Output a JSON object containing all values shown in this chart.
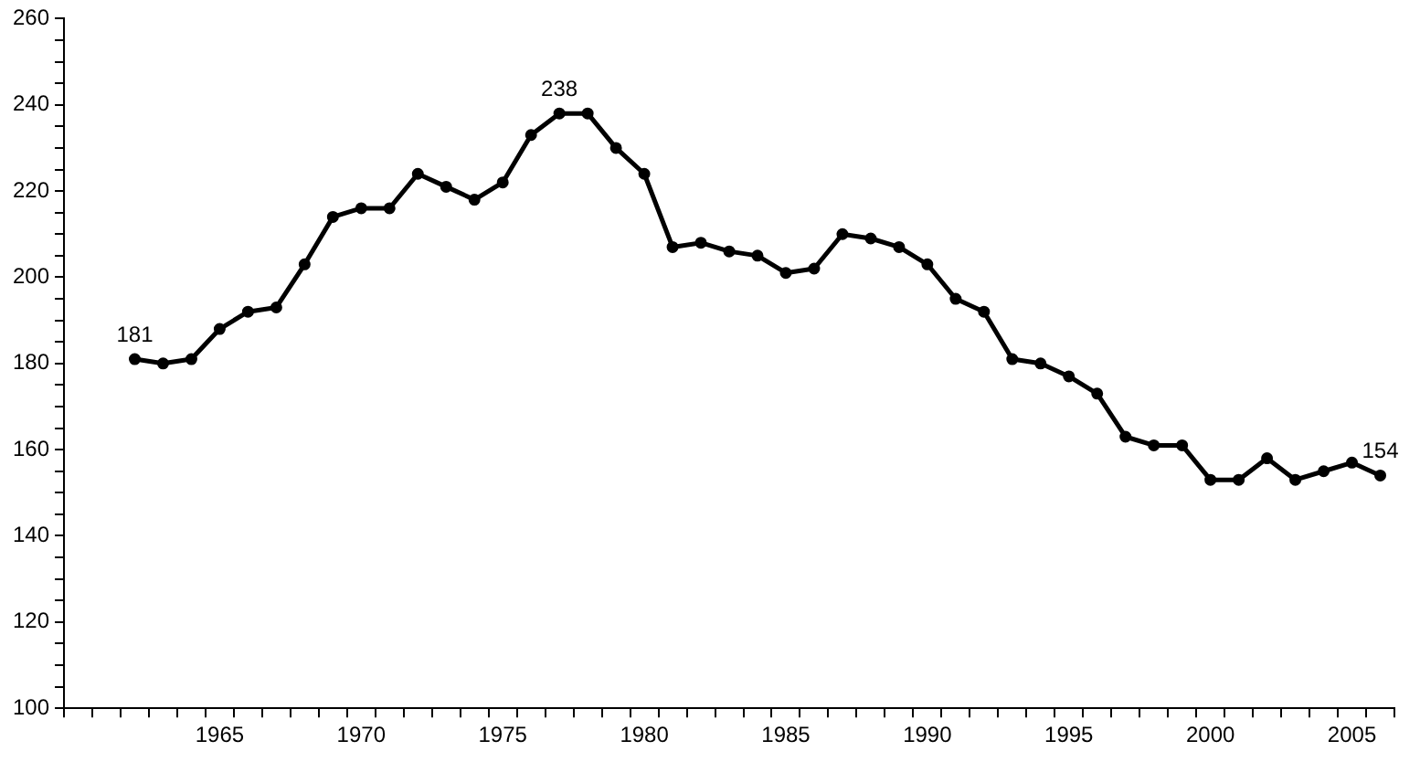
{
  "chart_data": {
    "type": "line",
    "categories": [
      null,
      null,
      null,
      null,
      null,
      "1965",
      null,
      null,
      null,
      null,
      "1970",
      null,
      null,
      null,
      null,
      "1975",
      null,
      null,
      null,
      null,
      "1980",
      null,
      null,
      null,
      null,
      "1985",
      null,
      null,
      null,
      null,
      "1990",
      null,
      null,
      null,
      null,
      "1995",
      null,
      null,
      null,
      null,
      "2000",
      null,
      null,
      null,
      null,
      "2005",
      null
    ],
    "series": [
      {
        "color": "#000000",
        "values": [
          null,
          null,
          181,
          180,
          181,
          188,
          192,
          193,
          203,
          214,
          216,
          216,
          224,
          221,
          218,
          222,
          233,
          238,
          238,
          230,
          224,
          207,
          208,
          206,
          205,
          201,
          202,
          210,
          209,
          207,
          203,
          195,
          192,
          181,
          180,
          177,
          173,
          163,
          161,
          161,
          153,
          153,
          158,
          153,
          155,
          157,
          154
        ],
        "value_labels": [
          null,
          null,
          "181",
          null,
          null,
          null,
          null,
          null,
          null,
          null,
          null,
          null,
          null,
          null,
          null,
          null,
          null,
          "238",
          null,
          null,
          null,
          null,
          null,
          null,
          null,
          null,
          null,
          null,
          null,
          null,
          null,
          null,
          null,
          null,
          null,
          null,
          null,
          null,
          null,
          null,
          null,
          null,
          null,
          null,
          null,
          null,
          "154"
        ]
      }
    ],
    "ylim": [
      100,
      260
    ],
    "yticks": [
      100,
      {
        "value": 105,
        "label": null
      },
      {
        "value": 110,
        "label": null
      },
      {
        "value": 115,
        "label": null
      },
      120,
      {
        "value": 125,
        "label": null
      },
      {
        "value": 130,
        "label": null
      },
      {
        "value": 135,
        "label": null
      },
      140,
      {
        "value": 145,
        "label": null
      },
      {
        "value": 150,
        "label": null
      },
      {
        "value": 155,
        "label": null
      },
      160,
      {
        "value": 165,
        "label": null
      },
      {
        "value": 170,
        "label": null
      },
      {
        "value": 175,
        "label": null
      },
      180,
      {
        "value": 185,
        "label": null
      },
      {
        "value": 190,
        "label": null
      },
      {
        "value": 195,
        "label": null
      },
      200,
      {
        "value": 205,
        "label": null
      },
      {
        "value": 210,
        "label": null
      },
      {
        "value": 215,
        "label": null
      },
      220,
      {
        "value": 225,
        "label": null
      },
      {
        "value": 230,
        "label": null
      },
      {
        "value": 235,
        "label": null
      },
      240,
      {
        "value": 245,
        "label": null
      },
      {
        "value": 250,
        "label": null
      },
      {
        "value": 255,
        "label": null
      },
      260
    ],
    "grid": false,
    "legend": false,
    "marker": "circle",
    "line_style": "solid"
  }
}
